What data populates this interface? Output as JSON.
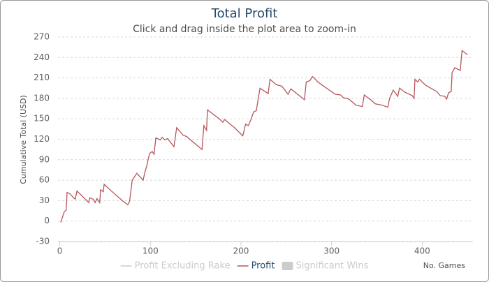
{
  "chart_data": {
    "type": "line",
    "title": "Total Profit",
    "subtitle": "Click and drag inside the plot area to zoom-in",
    "y_label": "Cumulative Total (USD)",
    "x_label": "No. Games",
    "xlim": [
      -2,
      456
    ],
    "xticks": [
      0,
      100,
      200,
      300,
      400
    ],
    "ylim": [
      -30,
      270
    ],
    "yticks": [
      -30,
      0,
      30,
      60,
      90,
      120,
      150,
      180,
      210,
      240,
      270
    ],
    "grid": true,
    "legend": "bottom",
    "series": [
      {
        "name": "Profit Excluding Rake",
        "color": "#cccccc",
        "visible": false,
        "symbol": "line"
      },
      {
        "name": "Profit",
        "color": "#b5565a",
        "visible": true,
        "symbol": "line",
        "x": [
          1,
          3,
          5,
          7,
          8,
          11,
          17,
          19,
          26,
          32,
          33,
          37,
          39,
          41,
          44,
          45,
          48,
          49,
          57,
          69,
          75,
          77,
          80,
          85,
          92,
          94,
          96,
          99,
          102,
          104,
          106,
          111,
          113,
          116,
          119,
          126,
          129,
          136,
          140,
          148,
          157,
          159,
          162,
          163,
          176,
          180,
          182,
          190,
          192,
          202,
          205,
          208,
          211,
          214,
          217,
          219,
          221,
          230,
          232,
          239,
          245,
          252,
          255,
          270,
          272,
          276,
          279,
          285,
          290,
          304,
          310,
          313,
          319,
          327,
          334,
          336,
          344,
          348,
          356,
          362,
          364,
          368,
          373,
          375,
          381,
          389,
          391,
          392,
          395,
          397,
          404,
          416,
          420,
          425,
          427,
          429,
          432,
          433,
          436,
          442,
          444,
          450
        ],
        "values": [
          -2,
          6,
          14,
          16,
          42,
          40,
          32,
          44,
          35,
          27,
          34,
          32,
          27,
          33,
          27,
          46,
          43,
          54,
          44,
          30,
          24,
          29,
          60,
          70,
          60,
          72,
          81,
          99,
          102,
          98,
          122,
          119,
          123,
          119,
          121,
          109,
          137,
          126,
          124,
          115,
          105,
          140,
          133,
          163,
          150,
          145,
          149,
          140,
          138,
          125,
          142,
          140,
          149,
          160,
          162,
          179,
          195,
          187,
          208,
          200,
          198,
          186,
          194,
          178,
          204,
          206,
          212,
          204,
          199,
          186,
          185,
          181,
          179,
          170,
          168,
          185,
          177,
          172,
          170,
          167,
          180,
          192,
          183,
          195,
          189,
          184,
          180,
          208,
          204,
          208,
          199,
          190,
          184,
          183,
          179,
          188,
          190,
          218,
          225,
          221,
          250,
          244
        ]
      },
      {
        "name": "Significant Wins",
        "color": "#cccccc",
        "visible": false,
        "symbol": "box"
      }
    ]
  }
}
